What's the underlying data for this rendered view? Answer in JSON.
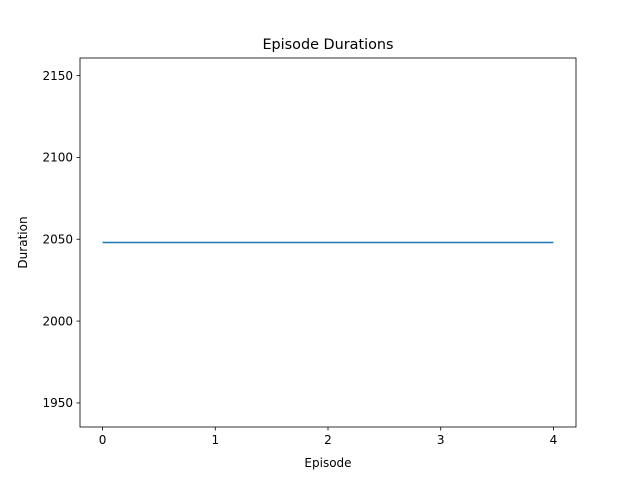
{
  "chart_data": {
    "type": "line",
    "title": "Episode Durations",
    "xlabel": "Episode",
    "ylabel": "Duration",
    "x": [
      0,
      1,
      2,
      3,
      4
    ],
    "series": [
      {
        "values": [
          2048,
          2048,
          2048,
          2048,
          2048
        ],
        "color": "#1f77b4"
      }
    ],
    "xlim": [
      -0.2,
      4.2
    ],
    "ylim": [
      1935.3,
      2160.7
    ],
    "xticks": [
      0,
      1,
      2,
      3,
      4
    ],
    "yticks": [
      1950,
      2000,
      2050,
      2100,
      2150
    ],
    "grid": false
  }
}
